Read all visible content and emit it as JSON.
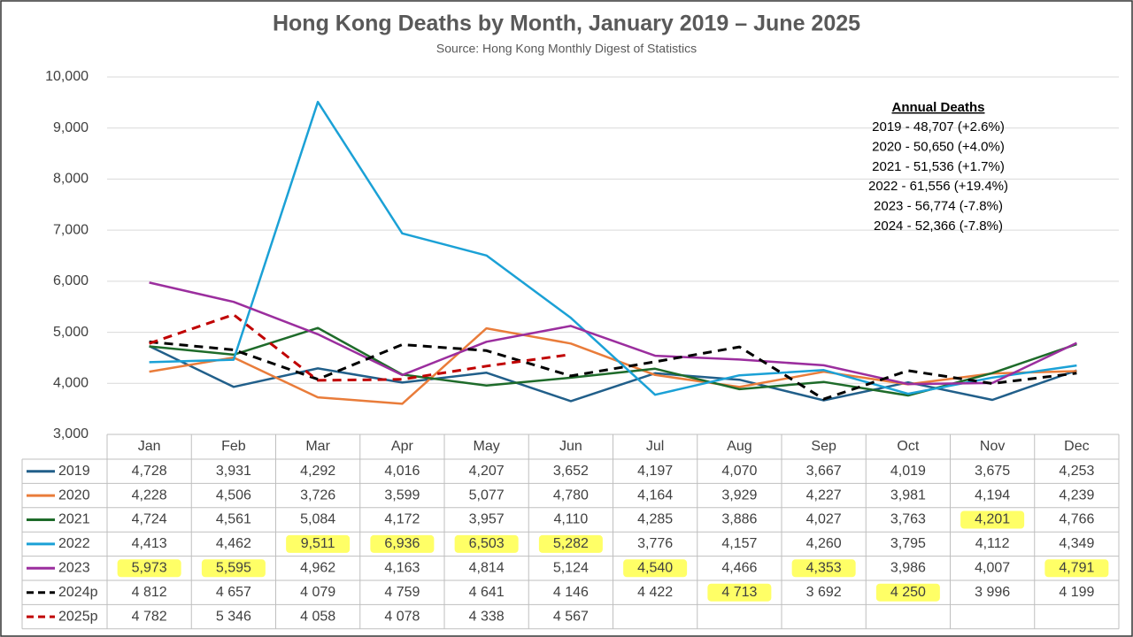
{
  "chart_data": {
    "type": "line",
    "title": "Hong Kong Deaths by Month, January 2019 – June 2025",
    "subtitle": "Source: Hong Kong Monthly Digest of Statistics",
    "categories": [
      "Jan",
      "Feb",
      "Mar",
      "Apr",
      "May",
      "Jun",
      "Jul",
      "Aug",
      "Sep",
      "Oct",
      "Nov",
      "Dec"
    ],
    "ylim": [
      3000,
      10000
    ],
    "yticks": [
      {
        "value": 3000,
        "label": "3,000"
      },
      {
        "value": 4000,
        "label": "4,000"
      },
      {
        "value": 5000,
        "label": "5,000"
      },
      {
        "value": 6000,
        "label": "6,000"
      },
      {
        "value": 7000,
        "label": "7,000"
      },
      {
        "value": 8000,
        "label": "8,000"
      },
      {
        "value": 9000,
        "label": "9,000"
      },
      {
        "value": 10000,
        "label": "10,000"
      }
    ],
    "grid": true,
    "highlight_color": "#ffff66",
    "series": [
      {
        "name": "2019",
        "color": "#215f8a",
        "dash": false,
        "values": [
          4728,
          3931,
          4292,
          4016,
          4207,
          3652,
          4197,
          4070,
          3667,
          4019,
          3675,
          4253
        ],
        "value_labels": [
          "4,728",
          "3,931",
          "4,292",
          "4,016",
          "4,207",
          "3,652",
          "4,197",
          "4,070",
          "3,667",
          "4,019",
          "3,675",
          "4,253"
        ],
        "highlight": []
      },
      {
        "name": "2020",
        "color": "#e97c3a",
        "dash": false,
        "values": [
          4228,
          4506,
          3726,
          3599,
          5077,
          4780,
          4164,
          3929,
          4227,
          3981,
          4194,
          4239
        ],
        "value_labels": [
          "4,228",
          "4,506",
          "3,726",
          "3,599",
          "5,077",
          "4,780",
          "4,164",
          "3,929",
          "4,227",
          "3,981",
          "4,194",
          "4,239"
        ],
        "highlight": []
      },
      {
        "name": "2021",
        "color": "#1e6b2a",
        "dash": false,
        "values": [
          4724,
          4561,
          5084,
          4172,
          3957,
          4110,
          4285,
          3886,
          4027,
          3763,
          4201,
          4766
        ],
        "value_labels": [
          "4,724",
          "4,561",
          "5,084",
          "4,172",
          "3,957",
          "4,110",
          "4,285",
          "3,886",
          "4,027",
          "3,763",
          "4,201",
          "4,766"
        ],
        "highlight": [
          10
        ]
      },
      {
        "name": "2022",
        "color": "#1ba1d6",
        "dash": false,
        "values": [
          4413,
          4462,
          9511,
          6936,
          6503,
          5282,
          3776,
          4157,
          4260,
          3795,
          4112,
          4349
        ],
        "value_labels": [
          "4,413",
          "4,462",
          "9,511",
          "6,936",
          "6,503",
          "5,282",
          "3,776",
          "4,157",
          "4,260",
          "3,795",
          "4,112",
          "4,349"
        ],
        "highlight": [
          2,
          3,
          4,
          5
        ]
      },
      {
        "name": "2023",
        "color": "#9b2e9e",
        "dash": false,
        "values": [
          5973,
          5595,
          4962,
          4163,
          4814,
          5124,
          4540,
          4466,
          4353,
          3986,
          4007,
          4791
        ],
        "value_labels": [
          "5,973",
          "5,595",
          "4,962",
          "4,163",
          "4,814",
          "5,124",
          "4,540",
          "4,466",
          "4,353",
          "3,986",
          "4,007",
          "4,791"
        ],
        "highlight": [
          0,
          1,
          6,
          8,
          11
        ]
      },
      {
        "name": "2024p",
        "color": "#000000",
        "dash": true,
        "values": [
          4812,
          4657,
          4079,
          4759,
          4641,
          4146,
          4422,
          4713,
          3692,
          4250,
          3996,
          4199
        ],
        "value_labels": [
          "4 812",
          "4 657",
          "4 079",
          "4 759",
          "4 641",
          "4 146",
          "4 422",
          "4 713",
          "3 692",
          "4 250",
          "3 996",
          "4 199"
        ],
        "highlight": [
          7,
          9
        ]
      },
      {
        "name": "2025p",
        "color": "#c00000",
        "dash": true,
        "values": [
          4782,
          5346,
          4058,
          4078,
          4338,
          4567,
          null,
          null,
          null,
          null,
          null,
          null
        ],
        "value_labels": [
          "4 782",
          "5 346",
          "4 058",
          "4 078",
          "4 338",
          "4 567",
          null,
          null,
          null,
          null,
          null,
          null
        ],
        "highlight": []
      }
    ],
    "annotation": {
      "title": "Annual Deaths",
      "lines": [
        "2019 - 48,707 (+2.6%)",
        "2020 - 50,650 (+4.0%)",
        "2021 - 51,536 (+1.7%)",
        "2022 - 61,556 (+19.4%)",
        "2023 - 56,774 (-7.8%)",
        "2024 - 52,366 (-7.8%)"
      ]
    }
  }
}
